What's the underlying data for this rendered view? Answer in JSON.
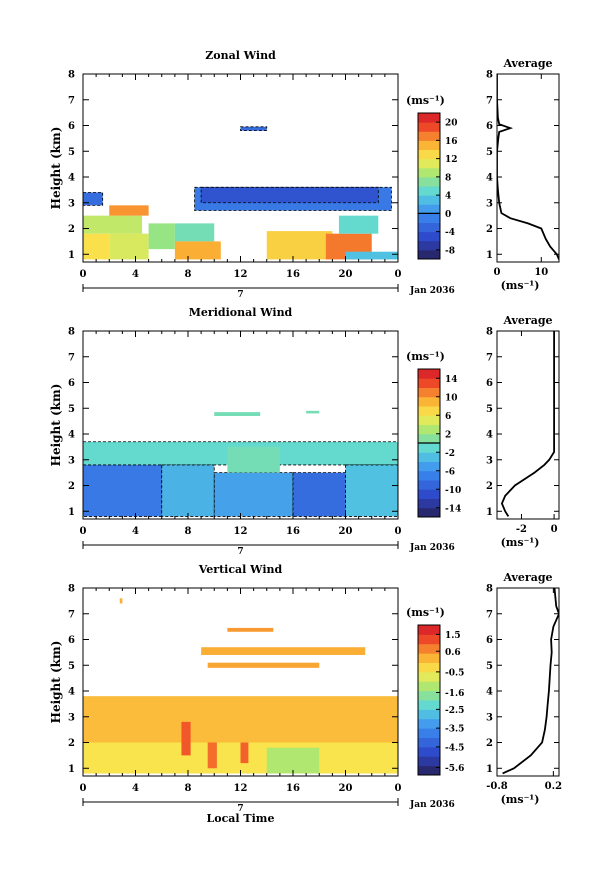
{
  "chart_data": [
    {
      "type": "heatmap",
      "title": "Zonal Wind",
      "ylabel": "Height (km)",
      "xticks": [
        "0",
        "4",
        "8",
        "12",
        "16",
        "20",
        "0"
      ],
      "yticks": [
        "1",
        "2",
        "3",
        "4",
        "5",
        "6",
        "7",
        "8"
      ],
      "xlim": [
        0,
        24
      ],
      "ylim": [
        0.7,
        8
      ],
      "date_marker": "7",
      "date_label": "Jan 2036",
      "colorbar": {
        "unit": "(ms⁻¹)",
        "ticks": [
          "20",
          "16",
          "12",
          "8",
          "4",
          "0",
          "-4",
          "-8"
        ],
        "tick_values": [
          20,
          16,
          12,
          8,
          4,
          0,
          -4,
          -8
        ],
        "range": [
          -10,
          22
        ],
        "contour_at": 0
      },
      "regions": [
        {
          "t0": 0.0,
          "t1": 1.5,
          "h0": 2.9,
          "h1": 3.4,
          "v": -3
        },
        {
          "t0": 0.0,
          "t1": 2.0,
          "h0": 0.8,
          "h1": 1.8,
          "v": 13
        },
        {
          "t0": 0.0,
          "t1": 4.5,
          "h0": 1.8,
          "h1": 2.5,
          "v": 10
        },
        {
          "t0": 2.0,
          "t1": 5.0,
          "h0": 2.5,
          "h1": 2.9,
          "v": 17
        },
        {
          "t0": 2.0,
          "t1": 5.0,
          "h0": 0.8,
          "h1": 1.8,
          "v": 11
        },
        {
          "t0": 5.0,
          "t1": 7.0,
          "h0": 1.2,
          "h1": 2.2,
          "v": 8
        },
        {
          "t0": 7.0,
          "t1": 10.0,
          "h0": 1.5,
          "h1": 2.2,
          "v": 6
        },
        {
          "t0": 7.0,
          "t1": 10.5,
          "h0": 0.8,
          "h1": 1.5,
          "v": 16
        },
        {
          "t0": 8.5,
          "t1": 23.5,
          "h0": 2.7,
          "h1": 3.6,
          "v": -2
        },
        {
          "t0": 9.0,
          "t1": 22.5,
          "h0": 3.0,
          "h1": 3.6,
          "v": -5
        },
        {
          "t0": 12.0,
          "t1": 14.0,
          "h0": 5.8,
          "h1": 5.95,
          "v": -3
        },
        {
          "t0": 14.0,
          "t1": 19.0,
          "h0": 0.8,
          "h1": 1.9,
          "v": 14
        },
        {
          "t0": 18.5,
          "t1": 22.0,
          "h0": 0.8,
          "h1": 1.8,
          "v": 18
        },
        {
          "t0": 19.5,
          "t1": 22.5,
          "h0": 1.8,
          "h1": 2.5,
          "v": 5
        },
        {
          "t0": 20.0,
          "t1": 24.0,
          "h0": 0.8,
          "h1": 1.1,
          "v": 3
        }
      ],
      "profile": {
        "title": "Average",
        "xlabel": "(ms⁻¹)",
        "xticks": [
          "0",
          "10"
        ],
        "xtick_values": [
          0,
          10
        ],
        "xlim": [
          0,
          14
        ],
        "ylim": [
          0.7,
          8
        ],
        "points": [
          [
            14,
            0.8
          ],
          [
            13.5,
            1.0
          ],
          [
            12,
            1.3
          ],
          [
            11,
            1.6
          ],
          [
            10,
            2.0
          ],
          [
            7,
            2.2
          ],
          [
            3,
            2.4
          ],
          [
            1,
            2.6
          ],
          [
            0.5,
            3.0
          ],
          [
            0.2,
            3.5
          ],
          [
            0,
            4.0
          ],
          [
            0,
            5.0
          ],
          [
            0.3,
            5.5
          ],
          [
            0.5,
            5.75
          ],
          [
            3,
            5.9
          ],
          [
            0.5,
            6.05
          ],
          [
            0.2,
            6.3
          ],
          [
            0,
            7.0
          ],
          [
            0,
            8.0
          ]
        ]
      }
    },
    {
      "type": "heatmap",
      "title": "Meridional Wind",
      "ylabel": "Height (km)",
      "xticks": [
        "0",
        "4",
        "8",
        "12",
        "16",
        "20",
        "0"
      ],
      "yticks": [
        "1",
        "2",
        "3",
        "4",
        "5",
        "6",
        "7",
        "8"
      ],
      "xlim": [
        0,
        24
      ],
      "ylim": [
        0.7,
        8
      ],
      "date_marker": "7",
      "date_label": "Jan 2036",
      "colorbar": {
        "unit": "(ms⁻¹)",
        "ticks": [
          "14",
          "10",
          "6",
          "2",
          "-2",
          "-6",
          "-10",
          "-14"
        ],
        "tick_values": [
          14,
          10,
          6,
          2,
          -2,
          -6,
          -10,
          -14
        ],
        "range": [
          -16,
          16
        ],
        "contour_at": 0
      },
      "regions": [
        {
          "t0": 0.0,
          "t1": 24.0,
          "h0": 2.8,
          "h1": 3.7,
          "v": -1
        },
        {
          "t0": 0.0,
          "t1": 6.0,
          "h0": 0.8,
          "h1": 2.8,
          "v": -8
        },
        {
          "t0": 6.0,
          "t1": 10.0,
          "h0": 0.8,
          "h1": 2.8,
          "v": -4
        },
        {
          "t0": 10.0,
          "t1": 16.0,
          "h0": 0.8,
          "h1": 2.5,
          "v": -5
        },
        {
          "t0": 11.0,
          "t1": 15.0,
          "h0": 2.5,
          "h1": 3.5,
          "v": 0
        },
        {
          "t0": 16.0,
          "t1": 20.0,
          "h0": 0.8,
          "h1": 2.5,
          "v": -9
        },
        {
          "t0": 20.0,
          "t1": 24.0,
          "h0": 0.8,
          "h1": 2.8,
          "v": -3
        },
        {
          "t0": 10.0,
          "t1": 13.5,
          "h0": 4.7,
          "h1": 4.85,
          "v": 0
        },
        {
          "t0": 17.0,
          "t1": 18.0,
          "h0": 4.8,
          "h1": 4.9,
          "v": 0
        }
      ],
      "profile": {
        "title": "Average",
        "xlabel": "(ms⁻¹)",
        "xticks": [
          "-2",
          "0"
        ],
        "xtick_values": [
          -2,
          0
        ],
        "xlim": [
          -3.5,
          0.3
        ],
        "ylim": [
          0.7,
          8
        ],
        "points": [
          [
            -2.8,
            0.8
          ],
          [
            -3.0,
            1.0
          ],
          [
            -3.2,
            1.3
          ],
          [
            -3.0,
            1.6
          ],
          [
            -2.4,
            2.0
          ],
          [
            -1.2,
            2.5
          ],
          [
            -0.6,
            2.8
          ],
          [
            -0.3,
            3.0
          ],
          [
            0,
            3.3
          ],
          [
            0,
            4.5
          ],
          [
            0,
            5.5
          ],
          [
            0,
            6.0
          ],
          [
            0,
            7.0
          ],
          [
            0,
            8.0
          ]
        ]
      }
    },
    {
      "type": "heatmap",
      "title": "Vertical Wind",
      "xlabel": "Local Time",
      "ylabel": "Height (km)",
      "xticks": [
        "0",
        "4",
        "8",
        "12",
        "16",
        "20",
        "0"
      ],
      "yticks": [
        "1",
        "2",
        "3",
        "4",
        "5",
        "6",
        "7",
        "8"
      ],
      "xlim": [
        0,
        24
      ],
      "ylim": [
        0.7,
        8
      ],
      "date_marker": "7",
      "date_label": "Jan 2036",
      "colorbar": {
        "unit": "(ms⁻¹)",
        "ticks": [
          "1.5",
          "0.6",
          "-0.5",
          "-1.6",
          "-2.5",
          "-3.5",
          "-4.5",
          "-5.6"
        ],
        "tick_values": [
          1.5,
          0.6,
          -0.5,
          -1.6,
          -2.5,
          -3.5,
          -4.5,
          -5.6
        ],
        "range": [
          -6,
          2
        ]
      },
      "regions": [
        {
          "t0": 0.0,
          "t1": 24.0,
          "h0": 0.8,
          "h1": 3.8,
          "v": 0.3
        },
        {
          "t0": 0.0,
          "t1": 24.0,
          "h0": 0.8,
          "h1": 2.0,
          "v": -0.3
        },
        {
          "t0": 7.5,
          "t1": 8.2,
          "h0": 1.5,
          "h1": 2.8,
          "v": 1.3
        },
        {
          "t0": 9.5,
          "t1": 10.2,
          "h0": 1.0,
          "h1": 2.0,
          "v": 1.1
        },
        {
          "t0": 12.0,
          "t1": 12.6,
          "h0": 1.2,
          "h1": 2.0,
          "v": 1.2
        },
        {
          "t0": 14.0,
          "t1": 18.0,
          "h0": 0.8,
          "h1": 1.8,
          "v": -1.2
        },
        {
          "t0": 9.0,
          "t1": 21.5,
          "h0": 5.4,
          "h1": 5.7,
          "v": 0.5
        },
        {
          "t0": 9.5,
          "t1": 18.0,
          "h0": 4.9,
          "h1": 5.1,
          "v": 0.6
        },
        {
          "t0": 11.0,
          "t1": 14.5,
          "h0": 6.3,
          "h1": 6.45,
          "v": 0.7
        },
        {
          "t0": 2.8,
          "t1": 3.0,
          "h0": 7.4,
          "h1": 7.6,
          "v": 0.5
        }
      ],
      "profile": {
        "title": "Average",
        "xlabel": "(ms⁻¹)",
        "xticks": [
          "-0.8",
          "0.2"
        ],
        "xtick_values": [
          -0.8,
          0.2
        ],
        "xlim": [
          -0.8,
          0.3
        ],
        "ylim": [
          0.7,
          8
        ],
        "points": [
          [
            -0.7,
            0.8
          ],
          [
            -0.5,
            1.0
          ],
          [
            -0.2,
            1.5
          ],
          [
            0,
            2.0
          ],
          [
            0.05,
            2.5
          ],
          [
            0.08,
            3.0
          ],
          [
            0.1,
            3.5
          ],
          [
            0.12,
            4.0
          ],
          [
            0.15,
            5.0
          ],
          [
            0.17,
            5.5
          ],
          [
            0.16,
            6.0
          ],
          [
            0.2,
            6.5
          ],
          [
            0.3,
            7.0
          ],
          [
            0.25,
            7.3
          ],
          [
            0.22,
            8.0
          ]
        ]
      }
    }
  ]
}
